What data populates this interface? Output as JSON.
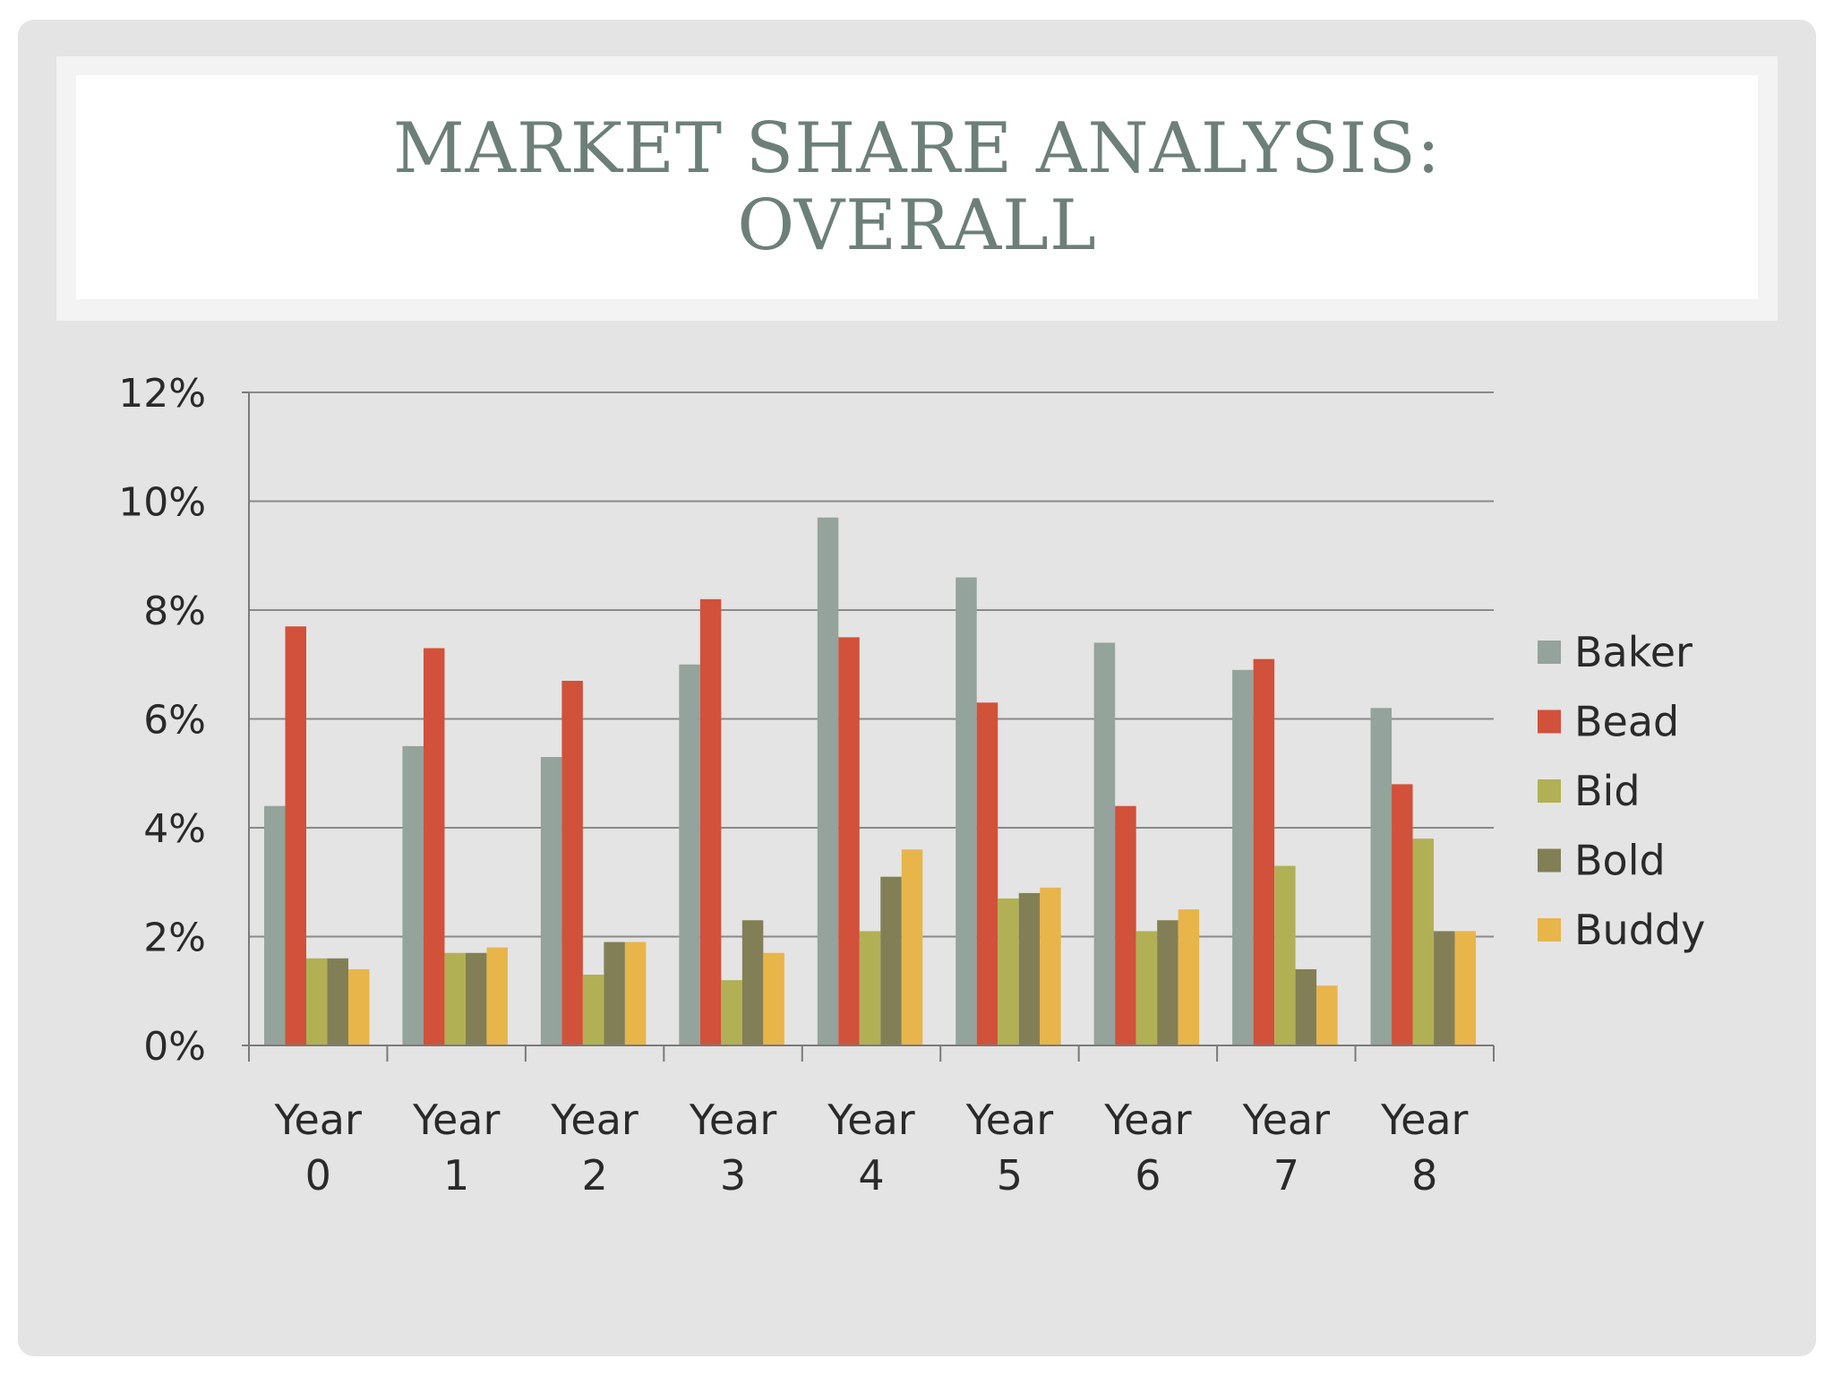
{
  "slide": {
    "title_lines": [
      "MARKET SHARE ANALYSIS:",
      "OVERALL"
    ]
  },
  "chart_data": {
    "type": "bar",
    "categories": [
      [
        "Year",
        "0"
      ],
      [
        "Year",
        "1"
      ],
      [
        "Year",
        "2"
      ],
      [
        "Year",
        "3"
      ],
      [
        "Year",
        "4"
      ],
      [
        "Year",
        "5"
      ],
      [
        "Year",
        "6"
      ],
      [
        "Year",
        "7"
      ],
      [
        "Year",
        "8"
      ]
    ],
    "series": [
      {
        "name": "Baker",
        "color": "#94a39b",
        "values": [
          4.4,
          5.5,
          5.3,
          7.0,
          9.7,
          8.6,
          7.4,
          6.9,
          6.2
        ]
      },
      {
        "name": "Bead",
        "color": "#d1513a",
        "values": [
          7.7,
          7.3,
          6.7,
          8.2,
          7.5,
          6.3,
          4.4,
          7.1,
          4.8
        ]
      },
      {
        "name": "Bid",
        "color": "#b2b055",
        "values": [
          1.6,
          1.7,
          1.3,
          1.2,
          2.1,
          2.7,
          2.1,
          3.3,
          3.8
        ]
      },
      {
        "name": "Bold",
        "color": "#827f56",
        "values": [
          1.6,
          1.7,
          1.9,
          2.3,
          3.1,
          2.8,
          2.3,
          1.4,
          2.1
        ]
      },
      {
        "name": "Buddy",
        "color": "#e8b54b",
        "values": [
          1.4,
          1.8,
          1.9,
          1.7,
          3.6,
          2.9,
          2.5,
          1.1,
          2.1
        ]
      }
    ],
    "yticks": [
      "0%",
      "2%",
      "4%",
      "6%",
      "8%",
      "10%",
      "12%"
    ],
    "ylim": [
      0,
      12
    ],
    "ytick_step": 2,
    "title": "",
    "xlabel": "",
    "ylabel": "",
    "grid": true,
    "legend": "right"
  }
}
